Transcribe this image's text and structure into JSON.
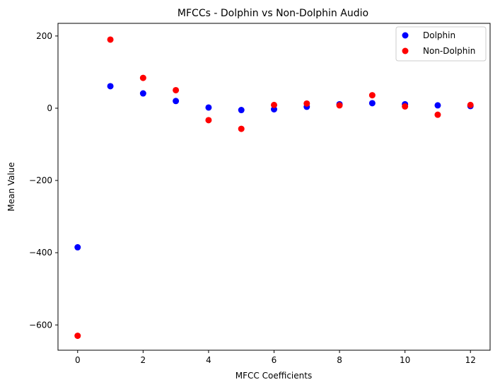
{
  "chart_data": {
    "type": "scatter",
    "title": "MFCCs - Dolphin vs Non-Dolphin Audio",
    "xlabel": "MFCC Coefficients",
    "ylabel": "Mean Value",
    "xlim": [
      -0.6,
      12.6
    ],
    "ylim": [
      -670,
      235
    ],
    "x_ticks": [
      0,
      2,
      4,
      6,
      8,
      10,
      12
    ],
    "y_ticks": [
      200,
      0,
      -200,
      -400,
      -600
    ],
    "y_tick_labels": [
      "200",
      "0",
      "−200",
      "−400",
      "−600"
    ],
    "grid": false,
    "legend_position": "top-right",
    "series": [
      {
        "name": "Dolphin",
        "color": "#0000ff",
        "x": [
          0,
          1,
          2,
          3,
          4,
          5,
          6,
          7,
          8,
          9,
          10,
          11,
          12
        ],
        "y": [
          -385,
          61,
          41,
          20,
          2,
          -5,
          -3,
          4,
          11,
          14,
          11,
          8,
          6
        ]
      },
      {
        "name": "Non-Dolphin",
        "color": "#ff0000",
        "x": [
          0,
          1,
          2,
          3,
          4,
          5,
          6,
          7,
          8,
          9,
          10,
          11,
          12
        ],
        "y": [
          -630,
          190,
          84,
          50,
          -33,
          -57,
          9,
          13,
          8,
          36,
          5,
          -18,
          9
        ]
      }
    ]
  }
}
